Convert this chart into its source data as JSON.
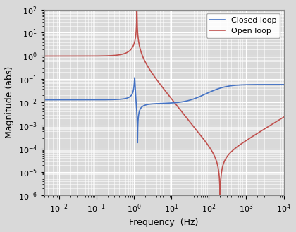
{
  "xlabel": "Frequency  (Hz)",
  "ylabel": "Magnitude (abs)",
  "closed_loop_color": "#4472C4",
  "open_loop_color": "#C0504D",
  "legend_labels": [
    "Closed loop",
    "Open loop"
  ],
  "background_color": "#d9d9d9",
  "grid_color": "#ffffff",
  "fn_open": 1.2,
  "zeta_open": 0.004,
  "fn_closed": 1.05,
  "zeta_closed": 0.22,
  "cl_dc_gain": 0.013,
  "open_peak_scale": 1.0,
  "notch_open_freq": 200.0,
  "notch_open_zeta": 0.002,
  "notch_closed_freq": 1.25,
  "notch_closed_zeta": 0.003,
  "freq_min": 0.004,
  "freq_max": 10000,
  "ylim_min": 1e-06,
  "ylim_max": 100.0,
  "xlim_min": 0.004,
  "xlim_max": 10000,
  "linewidth": 1.2,
  "legend_fontsize": 8,
  "tick_fontsize": 8,
  "label_fontsize": 9
}
